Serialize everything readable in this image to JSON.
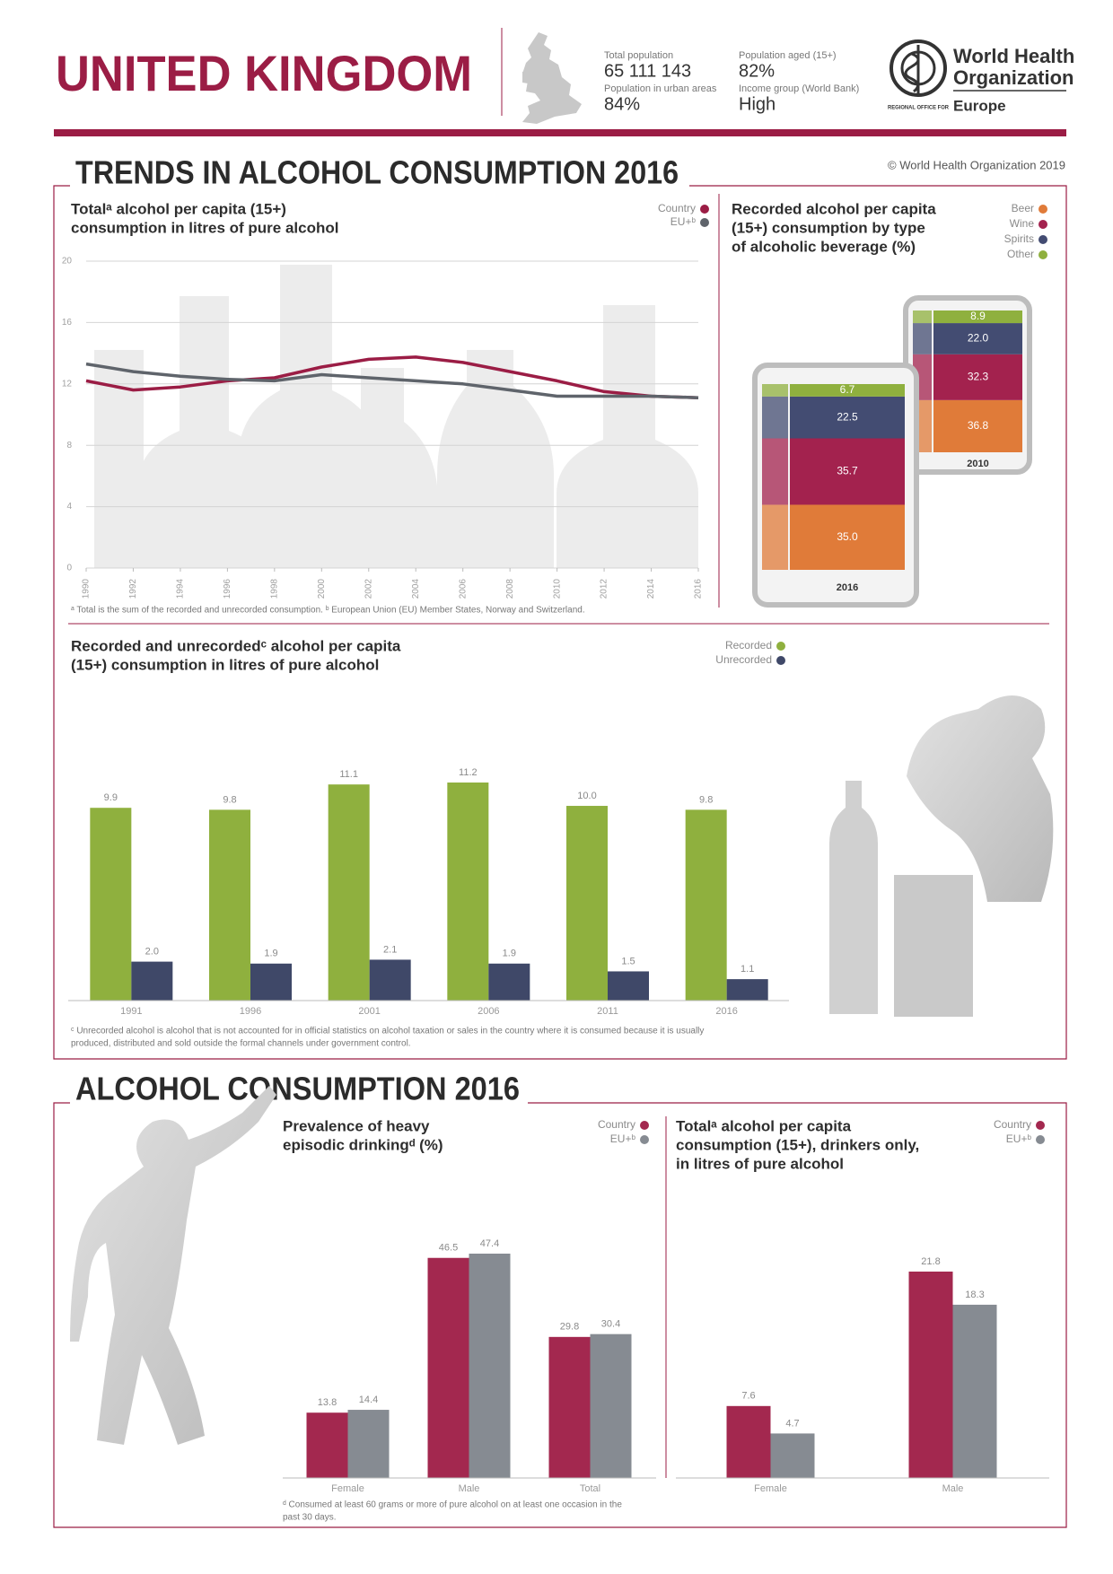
{
  "header": {
    "title": "UNITED KINGDOM",
    "stats": [
      {
        "label": "Total population",
        "value": "65 111 143"
      },
      {
        "label": "Population in urban areas",
        "value": "84%"
      },
      {
        "label": "Population aged (15+)",
        "value": "82%"
      },
      {
        "label": "Income group (World Bank)",
        "value": "High"
      }
    ],
    "org": {
      "name": [
        "World Health",
        "Organization"
      ],
      "office": "REGIONAL OFFICE FOR",
      "region": "Europe"
    },
    "copyright": "© World Health Organization 2019"
  },
  "sections": [
    "TRENDS IN ALCOHOL CONSUMPTION 2016",
    "ALCOHOL CONSUMPTION 2016"
  ],
  "chart_data": [
    {
      "type": "line",
      "title": [
        "Totalᵃ alcohol per capita (15+)",
        "consumption in litres of pure alcohol"
      ],
      "x": [
        1990,
        1992,
        1994,
        1996,
        1998,
        2000,
        2002,
        2004,
        2006,
        2008,
        2010,
        2012,
        2014,
        2016
      ],
      "xlim": [
        1990,
        2016
      ],
      "xticks": [
        1990,
        1992,
        1994,
        1996,
        1998,
        2000,
        2002,
        2004,
        2006,
        2008,
        2010,
        2012,
        2014,
        2016
      ],
      "ylim": [
        0,
        20
      ],
      "yticks": [
        0,
        4,
        8,
        12,
        16,
        20
      ],
      "grid": true,
      "series": [
        {
          "name": "Country",
          "color": "#9b1d45",
          "values": [
            12.2,
            11.6,
            11.8,
            12.2,
            12.4,
            13.1,
            13.6,
            13.75,
            13.4,
            12.8,
            12.2,
            11.5,
            11.2,
            11.1
          ]
        },
        {
          "name": "EU+ᵇ",
          "color": "#5f646b",
          "values": [
            13.3,
            12.8,
            12.5,
            12.3,
            12.2,
            12.6,
            12.4,
            12.2,
            12.0,
            11.6,
            11.2,
            11.2,
            11.2,
            11.1
          ]
        }
      ],
      "footnote": "ᵃ Total is the sum of the recorded and unrecorded consumption. ᵇ European Union (EU) Member States, Norway and Switzerland."
    },
    {
      "type": "stacked-glass",
      "title": [
        "Recorded alcohol per capita",
        "(15+) consumption by type",
        "of alcoholic beverage (%)"
      ],
      "categories": [
        "2016",
        "2010"
      ],
      "series": [
        {
          "name": "Beer",
          "color": "#e07b39",
          "values": [
            35.0,
            36.8
          ],
          "value_labels": [
            "35.0",
            "36.8"
          ]
        },
        {
          "name": "Wine",
          "color": "#a3224e",
          "values": [
            35.7,
            32.3
          ],
          "value_labels": [
            "35.7",
            "32.3"
          ]
        },
        {
          "name": "Spirits",
          "color": "#434c72",
          "values": [
            22.5,
            22.0
          ],
          "value_labels": [
            "22.5",
            "22.0"
          ]
        },
        {
          "name": "Other",
          "color": "#8fb03e",
          "values": [
            6.7,
            8.9
          ],
          "value_labels": [
            "6.7",
            "8.9"
          ]
        }
      ]
    },
    {
      "type": "bar",
      "title": [
        "Recorded and unrecordedᶜ alcohol per capita",
        "(15+) consumption in litres of pure alcohol"
      ],
      "categories": [
        "1991",
        "1996",
        "2001",
        "2006",
        "2011",
        "2016"
      ],
      "series": [
        {
          "name": "Recorded",
          "color": "#8fb03e",
          "values": [
            9.9,
            9.8,
            11.1,
            11.2,
            10.0,
            9.8
          ],
          "value_labels": [
            "9.9",
            "9.8",
            "11.1",
            "11.2",
            "10.0",
            "9.8"
          ]
        },
        {
          "name": "Unrecorded",
          "color": "#3f4868",
          "values": [
            2.0,
            1.9,
            2.1,
            1.9,
            1.5,
            1.1
          ],
          "value_labels": [
            "2.0",
            "1.9",
            "2.1",
            "1.9",
            "1.5",
            "1.1"
          ]
        }
      ],
      "footnote": [
        "ᶜ Unrecorded alcohol is alcohol that is not accounted for in official statistics on alcohol taxation or sales in the country where it is consumed because it is usually",
        "produced, distributed and sold outside the formal channels under government control."
      ]
    },
    {
      "type": "bar",
      "title": [
        "Prevalence of heavy",
        "episodic drinkingᵈ (%)"
      ],
      "categories": [
        "Female",
        "Male",
        "Total"
      ],
      "series": [
        {
          "name": "Country",
          "color": "#a3284f",
          "values": [
            13.8,
            46.5,
            29.8
          ]
        },
        {
          "name": "EU+ᵇ",
          "color": "#868b92",
          "values": [
            14.4,
            47.4,
            30.4
          ]
        }
      ],
      "footnote": [
        "ᵈ Consumed at least 60 grams or more of pure alcohol on at least one occasion in the",
        "past 30 days."
      ]
    },
    {
      "type": "bar",
      "title": [
        "Totalᵃ alcohol per capita",
        "consumption (15+), drinkers only,",
        "in litres of pure alcohol"
      ],
      "categories": [
        "Female",
        "Male"
      ],
      "series": [
        {
          "name": "Country",
          "color": "#a3284f",
          "values": [
            7.6,
            21.8
          ]
        },
        {
          "name": "EU+ᵇ",
          "color": "#868b92",
          "values": [
            4.7,
            18.3
          ]
        }
      ]
    }
  ]
}
